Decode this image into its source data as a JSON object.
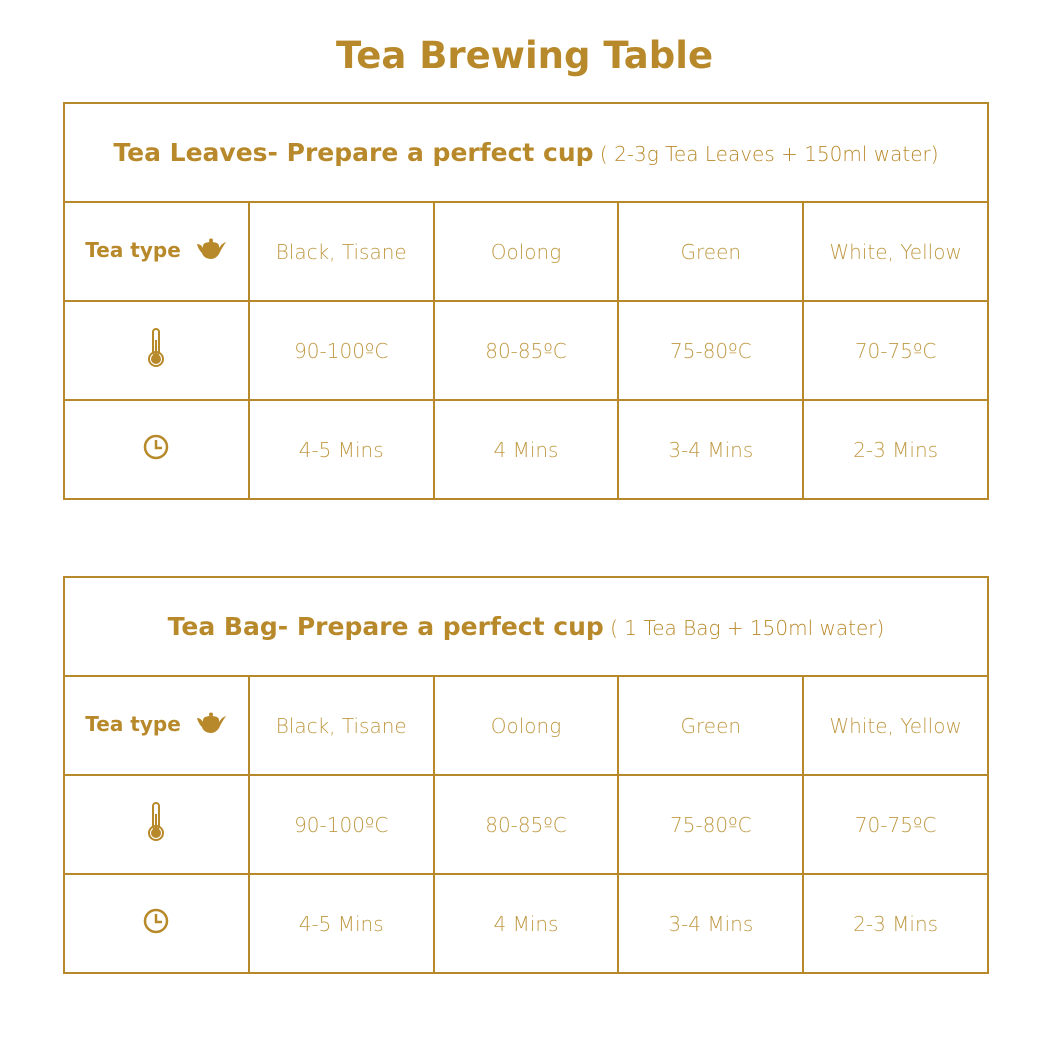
{
  "title": "Tea Brewing Table",
  "accent_color": "#b8892a",
  "tables": [
    {
      "heading_bold": "Tea Leaves- Prepare a perfect cup",
      "heading_note": "( 2-3g Tea Leaves + 150ml water)",
      "type_label": "Tea type",
      "types": [
        "Black, Tisane",
        "Oolong",
        "Green",
        "White, Yellow"
      ],
      "temperatures": [
        "90-100ºC",
        "80-85ºC",
        "75-80ºC",
        "70-75ºC"
      ],
      "times": [
        "4-5 Mins",
        "4 Mins",
        "3-4 Mins",
        "2-3 Mins"
      ]
    },
    {
      "heading_bold": "Tea Bag- Prepare a perfect cup",
      "heading_note": "( 1 Tea Bag + 150ml water)",
      "type_label": "Tea type",
      "types": [
        "Black, Tisane",
        "Oolong",
        "Green",
        "White, Yellow"
      ],
      "temperatures": [
        "90-100ºC",
        "80-85ºC",
        "75-80ºC",
        "70-75ºC"
      ],
      "times": [
        "4-5 Mins",
        "4 Mins",
        "3-4 Mins",
        "2-3 Mins"
      ]
    }
  ],
  "icons": {
    "type": "teapot-icon",
    "temperature": "thermometer-icon",
    "time": "clock-icon"
  }
}
